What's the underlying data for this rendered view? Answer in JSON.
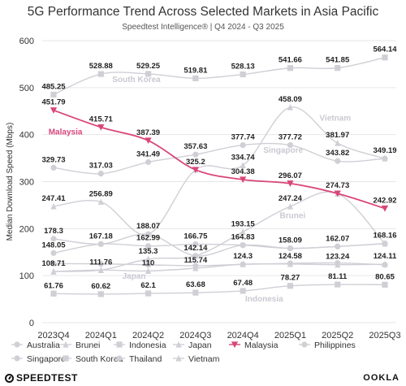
{
  "header": {
    "title": "5G Performance Trend Across Selected Markets in Asia Pacific",
    "subtitle": "Speedtest Intelligence® | Q4 2024 - Q3 2025"
  },
  "footer": {
    "left_brand": "SPEEDTEST",
    "right_brand": "OOKLA"
  },
  "colors": {
    "accent": "#d9467a",
    "muted": "#cfcfd6",
    "grid": "#e6e6e6",
    "label": "#222222"
  },
  "chart_data": {
    "type": "line",
    "title": "5G Performance Trend Across Selected Markets in Asia Pacific",
    "subtitle": "Speedtest Intelligence® | Q4 2024 - Q3 2025",
    "ylabel": "Median Download Speed (Mbps)",
    "xlabel": "",
    "ylim": [
      0,
      600
    ],
    "yticks": [
      "0",
      "100",
      "200",
      "300",
      "400",
      "500",
      "600"
    ],
    "categories": [
      "2023Q4",
      "2024Q1",
      "2024Q2",
      "2024Q3",
      "2024Q4",
      "2025Q1",
      "2025Q2",
      "2025Q3"
    ],
    "grid": "horizontal",
    "legend_position": "bottom",
    "series": [
      {
        "name": "Australia",
        "marker": "circle",
        "highlight": false,
        "annotation": "",
        "values": [
          148.05,
          167.18,
          162.99,
          166.75,
          164.83,
          158.09,
          162.07,
          168.16
        ],
        "labels": [
          "148.05",
          "167.18",
          "162.99",
          "166.75",
          "164.83",
          "158.09",
          "162.07",
          "168.16"
        ]
      },
      {
        "name": "Brunei",
        "marker": "triangle",
        "highlight": false,
        "annotation": "Brunei",
        "values": [
          108.71,
          111.76,
          135.3,
          142.14,
          193.15,
          247.24,
          274.73,
          168.16
        ],
        "labels": [
          "108.71",
          "111.76",
          "135.3",
          "142.14",
          "193.15",
          "247.24",
          "274.73",
          ""
        ]
      },
      {
        "name": "Indonesia",
        "marker": "square",
        "highlight": false,
        "annotation": "Indonesia",
        "values": [
          61.76,
          60.62,
          62.1,
          63.68,
          67.48,
          78.27,
          81.11,
          80.65
        ],
        "labels": [
          "61.76",
          "60.62",
          "62.1",
          "63.68",
          "67.48",
          "78.27",
          "81.11",
          "80.65"
        ]
      },
      {
        "name": "Japan",
        "marker": "triangle",
        "highlight": false,
        "annotation": "Japan",
        "values": [
          108.71,
          111.76,
          110,
          115.74,
          124.3,
          124.58,
          123.24,
          124.11
        ],
        "labels": [
          "",
          "",
          "110",
          "115.74",
          "124.3",
          "124.58",
          "123.24",
          "124.11"
        ]
      },
      {
        "name": "Malaysia",
        "marker": "triangle-down",
        "highlight": true,
        "annotation": "Malaysia",
        "values": [
          451.79,
          415.71,
          387.39,
          325.2,
          304.38,
          296.07,
          274.73,
          242.92
        ],
        "labels": [
          "451.79",
          "415.71",
          "387.39",
          "325.2",
          "304.38",
          "296.07",
          "",
          "242.92"
        ]
      },
      {
        "name": "Philippines",
        "marker": "circle",
        "highlight": false,
        "annotation": "",
        "values": [
          178.3,
          167.18,
          188.07,
          142.14,
          164.83,
          158.09,
          162.07,
          168.16
        ],
        "labels": [
          "178.3",
          "",
          "188.07",
          "",
          "",
          "",
          "",
          ""
        ]
      },
      {
        "name": "Singapore",
        "marker": "circle",
        "highlight": false,
        "annotation": "Singapore",
        "values": [
          329.73,
          317.03,
          341.49,
          357.63,
          377.74,
          377.72,
          343.82,
          349.19
        ],
        "labels": [
          "329.73",
          "317.03",
          "341.49",
          "357.63",
          "377.74",
          "377.72",
          "343.82",
          "349.19"
        ]
      },
      {
        "name": "South Korea",
        "marker": "square",
        "highlight": false,
        "annotation": "South Korea",
        "values": [
          485.25,
          528.88,
          529.25,
          519.81,
          528.13,
          541.66,
          541.85,
          564.14
        ],
        "labels": [
          "485.25",
          "528.88",
          "529.25",
          "519.81",
          "528.13",
          "541.66",
          "541.85",
          "564.14"
        ]
      },
      {
        "name": "Thailand",
        "marker": "circle",
        "highlight": false,
        "annotation": "",
        "values": [
          125.5,
          125.0,
          123.0,
          121.0,
          124.0,
          126.0,
          127.0,
          123.0
        ],
        "labels": [
          "",
          "",
          "",
          "",
          "",
          "",
          "",
          ""
        ]
      },
      {
        "name": "Vietnam",
        "marker": "triangle",
        "highlight": false,
        "annotation": "Vietnam",
        "values": [
          247.41,
          256.89,
          188.07,
          325.2,
          334.74,
          458.09,
          381.97,
          349.19
        ],
        "labels": [
          "247.41",
          "256.89",
          "",
          "",
          "334.74",
          "458.09",
          "381.97",
          ""
        ]
      }
    ]
  }
}
